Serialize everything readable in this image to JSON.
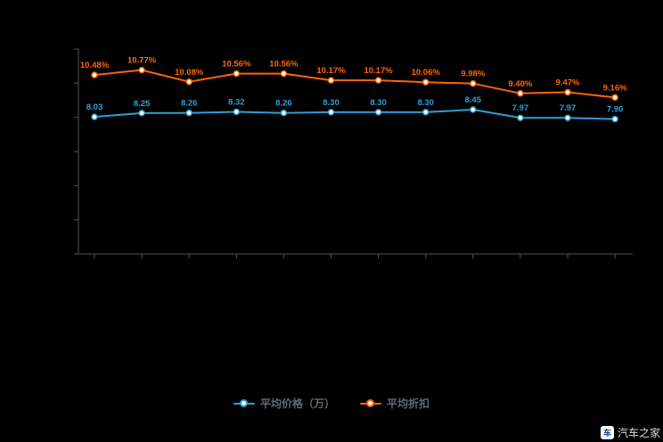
{
  "chart_data": {
    "type": "line",
    "title": "",
    "categories": [
      "",
      "",
      "",
      "",
      "",
      "",
      "",
      "",
      "",
      "",
      "",
      ""
    ],
    "series": [
      {
        "name": "平均价格（万）",
        "color": "#2f9ed5",
        "label_suffix": "",
        "values": [
          8.03,
          8.25,
          8.26,
          8.32,
          8.26,
          8.3,
          8.3,
          8.3,
          8.45,
          7.97,
          7.97,
          7.9
        ]
      },
      {
        "name": "平均折扣",
        "color": "#ff6600",
        "label_suffix": "%",
        "values": [
          10.48,
          10.77,
          10.08,
          10.56,
          10.56,
          10.17,
          10.17,
          10.06,
          9.98,
          9.4,
          9.47,
          9.16
        ]
      }
    ],
    "ylim": [
      0,
      12
    ],
    "y_tick_step": 2,
    "grid": false,
    "legend_position": "bottom",
    "axis_color": "#555555"
  },
  "watermark": {
    "text": "汽车之家",
    "logo": "车"
  }
}
